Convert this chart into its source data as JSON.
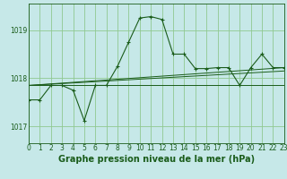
{
  "background_color": "#c6e8e8",
  "grid_color": "#90c890",
  "line_color": "#1a5c1a",
  "title": "Graphe pression niveau de la mer (hPa)",
  "xlim": [
    0,
    23
  ],
  "ylim": [
    1016.65,
    1019.55
  ],
  "yticks": [
    1017,
    1018,
    1019
  ],
  "xticks": [
    0,
    1,
    2,
    3,
    4,
    5,
    6,
    7,
    8,
    9,
    10,
    11,
    12,
    13,
    14,
    15,
    16,
    17,
    18,
    19,
    20,
    21,
    22,
    23
  ],
  "series_main": {
    "x": [
      0,
      1,
      2,
      3,
      4,
      5,
      6,
      7,
      8,
      9,
      10,
      11,
      12,
      13,
      14,
      15,
      16,
      17,
      18,
      19,
      20,
      21,
      22,
      23
    ],
    "y": [
      1017.55,
      1017.55,
      1017.85,
      1017.85,
      1017.75,
      1017.12,
      1017.85,
      1017.85,
      1018.25,
      1018.75,
      1019.25,
      1019.28,
      1019.22,
      1018.5,
      1018.5,
      1018.2,
      1018.2,
      1018.22,
      1018.22,
      1017.85,
      1018.22,
      1018.5,
      1018.22,
      1018.22
    ]
  },
  "series_flat": {
    "x": [
      0,
      23
    ],
    "y": [
      1017.85,
      1017.85
    ]
  },
  "series_diag1": {
    "x": [
      0,
      23
    ],
    "y": [
      1017.85,
      1018.15
    ]
  },
  "series_diag2": {
    "x": [
      0,
      23
    ],
    "y": [
      1017.85,
      1018.22
    ]
  },
  "title_fontsize": 7,
  "tick_fontsize": 5.5
}
